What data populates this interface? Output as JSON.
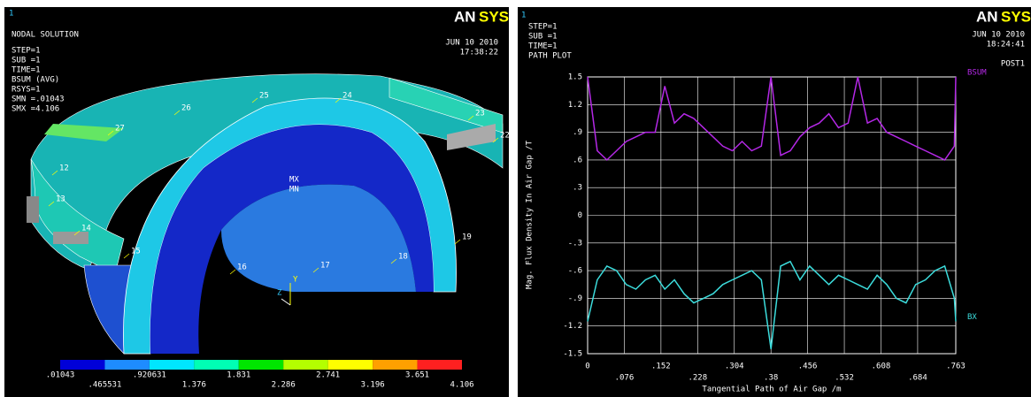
{
  "left_panel": {
    "window_number": "1",
    "title": "NODAL SOLUTION",
    "info": [
      "STEP=1",
      "SUB =1",
      "TIME=1",
      "BSUM    (AVG)",
      "RSYS=1",
      "SMN =.01043",
      "SMX =4.106"
    ],
    "logo_part1": "AN",
    "logo_part2": "SYS",
    "date": "JUN 10 2010",
    "time": "17:38:22",
    "node_labels": [
      "12",
      "13",
      "14",
      "15",
      "16",
      "17",
      "18",
      "19",
      "22",
      "23",
      "24",
      "25",
      "26",
      "27"
    ],
    "max_label": "MX",
    "min_label": "MN",
    "axis_y": "Y",
    "axis_z": "Z",
    "colorbar": {
      "colors": [
        "#0000d8",
        "#1e8cff",
        "#00e6ff",
        "#00ffb4",
        "#00e600",
        "#b4ff00",
        "#ffff00",
        "#ffa000",
        "#ff2020"
      ],
      "labels": [
        ".01043",
        ".465531",
        ".920631",
        "1.376",
        "1.831",
        "2.286",
        "2.741",
        "3.196",
        "3.651",
        "4.106"
      ]
    }
  },
  "chart_data": {
    "type": "line",
    "window_number": "1",
    "info": [
      "STEP=1",
      "SUB =1",
      "TIME=1",
      "PATH PLOT"
    ],
    "logo_part1": "AN",
    "logo_part2": "SYS",
    "date": "JUN 10 2010",
    "time": "18:24:41",
    "program": "POST1",
    "xlabel": "Tangential Path of Air Gap /m",
    "ylabel": "Mag. Flux Density In Air Gap /T",
    "x": [
      0,
      0.02,
      0.04,
      0.06,
      0.08,
      0.1,
      0.12,
      0.14,
      0.16,
      0.18,
      0.2,
      0.22,
      0.24,
      0.26,
      0.28,
      0.3,
      0.32,
      0.34,
      0.36,
      0.38,
      0.4,
      0.42,
      0.44,
      0.46,
      0.48,
      0.5,
      0.52,
      0.54,
      0.56,
      0.58,
      0.6,
      0.62,
      0.64,
      0.66,
      0.68,
      0.7,
      0.72,
      0.74,
      0.76,
      0.763
    ],
    "series": [
      {
        "name": "BSUM",
        "color": "#b428e6",
        "values": [
          1.5,
          0.7,
          0.6,
          0.7,
          0.8,
          0.85,
          0.9,
          0.9,
          1.4,
          1.0,
          1.1,
          1.05,
          0.95,
          0.85,
          0.75,
          0.7,
          0.8,
          0.7,
          0.75,
          1.5,
          0.65,
          0.7,
          0.85,
          0.95,
          1.0,
          1.1,
          0.95,
          1.0,
          1.5,
          1.0,
          1.05,
          0.9,
          0.85,
          0.8,
          0.75,
          0.7,
          0.65,
          0.6,
          0.75,
          1.5
        ]
      },
      {
        "name": "BX",
        "color": "#3cdcdc",
        "values": [
          -1.15,
          -0.7,
          -0.55,
          -0.6,
          -0.75,
          -0.8,
          -0.7,
          -0.65,
          -0.8,
          -0.7,
          -0.85,
          -0.95,
          -0.9,
          -0.85,
          -0.75,
          -0.7,
          -0.65,
          -0.6,
          -0.7,
          -1.45,
          -0.55,
          -0.5,
          -0.7,
          -0.55,
          -0.65,
          -0.75,
          -0.65,
          -0.7,
          -0.75,
          -0.8,
          -0.65,
          -0.75,
          -0.9,
          -0.95,
          -0.75,
          -0.7,
          -0.6,
          -0.55,
          -0.9,
          -1.15
        ]
      }
    ],
    "xlim": [
      0,
      0.763
    ],
    "xticks": [
      0,
      {
        "value": 0.076,
        "label": ".076"
      },
      {
        "value": 0.152,
        "label": ".152"
      },
      {
        "value": 0.228,
        "label": ".228"
      },
      {
        "value": 0.304,
        "label": ".304"
      },
      {
        "value": 0.38,
        "label": ".38"
      },
      {
        "value": 0.456,
        "label": ".456"
      },
      {
        "value": 0.532,
        "label": ".532"
      },
      {
        "value": 0.608,
        "label": ".608"
      },
      {
        "value": 0.684,
        "label": ".684"
      },
      {
        "value": 0.763,
        "label": ".763"
      }
    ],
    "ylim": [
      -1.5,
      1.5
    ],
    "yticks": [
      -1.5,
      -1.2,
      {
        "value": -0.9,
        "label": "-.9"
      },
      {
        "value": -0.6,
        "label": "-.6"
      },
      {
        "value": -0.3,
        "label": "-.3"
      },
      0,
      {
        "value": 0.3,
        "label": ".3"
      },
      {
        "value": 0.6,
        "label": ".6"
      },
      {
        "value": 0.9,
        "label": ".9"
      },
      1.2,
      1.5
    ],
    "grid": true
  }
}
